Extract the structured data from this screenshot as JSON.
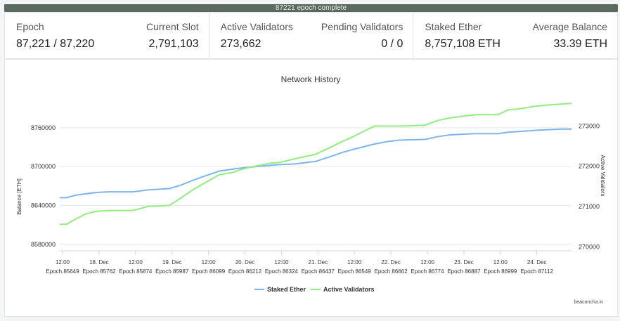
{
  "status": {
    "epoch_complete_text": "87221 epoch complete",
    "progress": 1.0
  },
  "stats": {
    "epoch": {
      "label": "Epoch",
      "value": "87,221 / 87,220"
    },
    "current_slot": {
      "label": "Current Slot",
      "value": "2,791,103"
    },
    "active_validators": {
      "label": "Active Validators",
      "value": "273,662"
    },
    "pending_validators": {
      "label": "Pending Validators",
      "value": "0 / 0"
    },
    "staked_ether": {
      "label": "Staked Ether",
      "value": "8,757,108 ETH"
    },
    "average_balance": {
      "label": "Average Balance",
      "value": "33.39 ETH"
    }
  },
  "chart_data": {
    "type": "line",
    "title": "Network History",
    "ylabel": "Balance [ETH]",
    "y2label": "Active Validators",
    "ylim": [
      8570000,
      8800000
    ],
    "y2lim": [
      269900,
      273600
    ],
    "yticks": [
      8580000,
      8640000,
      8700000,
      8760000
    ],
    "y2ticks": [
      270000,
      271000,
      272000,
      273000
    ],
    "x_ticks": [
      {
        "top": "12:00",
        "bottom": "Epoch 85649"
      },
      {
        "top": "18. Dec",
        "bottom": "Epoch 85762"
      },
      {
        "top": "12:00",
        "bottom": "Epoch 85874"
      },
      {
        "top": "19. Dec",
        "bottom": "Epoch 85987"
      },
      {
        "top": "12:00",
        "bottom": "Epoch 86099"
      },
      {
        "top": "20. Dec",
        "bottom": "Epoch 86212"
      },
      {
        "top": "12:00",
        "bottom": "Epoch 86324"
      },
      {
        "top": "21. Dec",
        "bottom": "Epoch 86437"
      },
      {
        "top": "12:00",
        "bottom": "Epoch 86549"
      },
      {
        "top": "22. Dec",
        "bottom": "Epoch 86662"
      },
      {
        "top": "12:00",
        "bottom": "Epoch 86774"
      },
      {
        "top": "23. Dec",
        "bottom": "Epoch 86887"
      },
      {
        "top": "12:00",
        "bottom": "Epoch 86999"
      },
      {
        "top": "24. Dec",
        "bottom": "Epoch 87112"
      }
    ],
    "x": [
      85649,
      85670,
      85700,
      85730,
      85762,
      85800,
      85874,
      85920,
      85987,
      86020,
      86060,
      86099,
      86140,
      86180,
      86212,
      86250,
      86300,
      86324,
      86370,
      86437,
      86480,
      86520,
      86549,
      86580,
      86620,
      86662,
      86700,
      86774,
      86810,
      86850,
      86887,
      86930,
      86999,
      87030,
      87060,
      87112,
      87150,
      87200,
      87225
    ],
    "series": [
      {
        "name": "Staked Ether",
        "color": "#7cb5ec",
        "axis": "left",
        "values": [
          8652000,
          8652000,
          8656000,
          8658000,
          8660000,
          8661000,
          8661000,
          8664000,
          8666000,
          8671000,
          8679000,
          8686000,
          8693000,
          8696000,
          8698000,
          8700000,
          8702000,
          8703000,
          8704000,
          8708000,
          8715000,
          8722000,
          8726000,
          8730000,
          8735000,
          8739000,
          8741000,
          8742000,
          8746000,
          8749000,
          8750000,
          8751000,
          8751000,
          8753000,
          8754000,
          8756000,
          8757000,
          8758000,
          8758000
        ]
      },
      {
        "name": "Active Validators",
        "color": "#90ed7d",
        "axis": "right",
        "values": [
          270560,
          270560,
          270700,
          270820,
          270880,
          270900,
          270900,
          271000,
          271030,
          271200,
          271420,
          271600,
          271790,
          271840,
          271930,
          272000,
          272080,
          272090,
          272180,
          272300,
          272460,
          272620,
          272720,
          272850,
          273000,
          273000,
          273000,
          273020,
          273130,
          273200,
          273240,
          273280,
          273280,
          273400,
          273420,
          273490,
          273520,
          273550,
          273560
        ]
      }
    ],
    "legend_position": "bottom"
  },
  "footer": {
    "credit": "beaconcha.in"
  }
}
